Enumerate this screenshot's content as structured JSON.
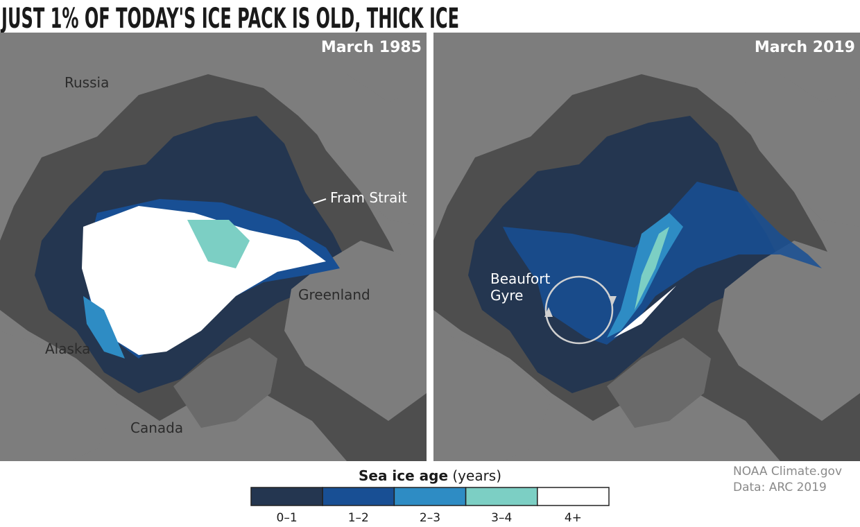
{
  "title": "JUST 1% OF TODAY'S ICE PACK IS OLD, THICK ICE",
  "panels": [
    {
      "label": "March 1985",
      "places": [
        {
          "name": "Russia"
        },
        {
          "name": "Fram Strait"
        },
        {
          "name": "Greenland"
        },
        {
          "name": "Alaska"
        },
        {
          "name": "Canada"
        }
      ]
    },
    {
      "label": "March 2019",
      "places": [
        {
          "name_lines": [
            "Beaufort",
            "Gyre"
          ]
        }
      ]
    }
  ],
  "legend": {
    "title": "Sea ice age",
    "unit": "(years)",
    "items": [
      {
        "label": "0–1",
        "color": "#243650"
      },
      {
        "label": "1–2",
        "color": "#184f94"
      },
      {
        "label": "2–3",
        "color": "#2e8cc4"
      },
      {
        "label": "3–4",
        "color": "#7ccfc4"
      },
      {
        "label": "4+",
        "color": "#ffffff"
      }
    ]
  },
  "credit": [
    "NOAA Climate.gov",
    "Data: ARC 2019"
  ]
}
